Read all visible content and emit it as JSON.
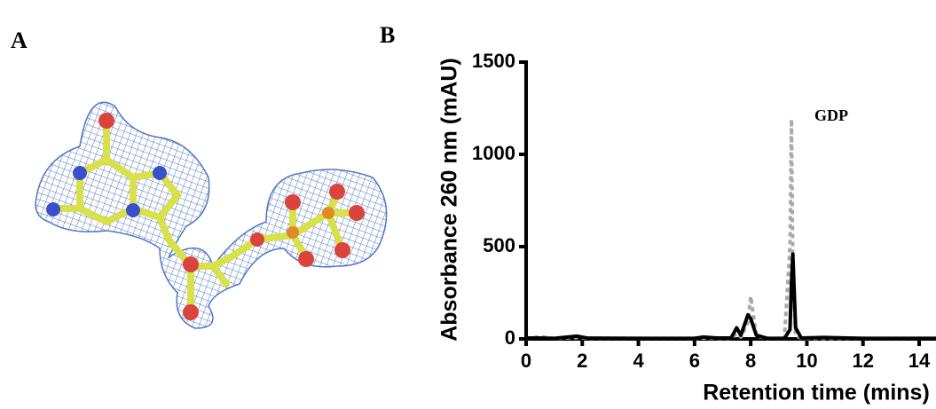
{
  "panel_labels": [
    "A",
    "B"
  ],
  "chart_data": {
    "type": "line",
    "xlabel": "Retention time (mins)",
    "ylabel": "Absorbance 260 nm (mAU)",
    "annotation": "GDP",
    "x": [
      0,
      0.5,
      1,
      1.8,
      2.2,
      4,
      6,
      6.3,
      6.8,
      7.3,
      7.5,
      7.65,
      7.9,
      8.0,
      8.2,
      8.6,
      9.2,
      9.4,
      9.45,
      9.5,
      9.6,
      9.8,
      10.6,
      12,
      14.6
    ],
    "series": [
      {
        "color": "#aaaaaa",
        "dashed": true,
        "values": [
          3,
          12,
          3,
          8,
          3,
          3,
          3,
          5,
          3,
          3,
          30,
          10,
          90,
          230,
          15,
          3,
          3,
          500,
          1190,
          400,
          20,
          3,
          3,
          3,
          3
        ]
      },
      {
        "color": "#000000",
        "dashed": false,
        "values": [
          5,
          5,
          3,
          15,
          4,
          3,
          3,
          10,
          5,
          5,
          60,
          20,
          130,
          110,
          20,
          3,
          3,
          50,
          300,
          460,
          60,
          5,
          8,
          3,
          3
        ]
      }
    ],
    "xlim": [
      0,
      14.6
    ],
    "ylim": [
      0,
      1500
    ],
    "xticks": [
      0,
      2,
      4,
      6,
      8,
      10,
      12,
      14
    ],
    "yticks": [
      0,
      500,
      1000,
      1500
    ],
    "grid": false
  }
}
